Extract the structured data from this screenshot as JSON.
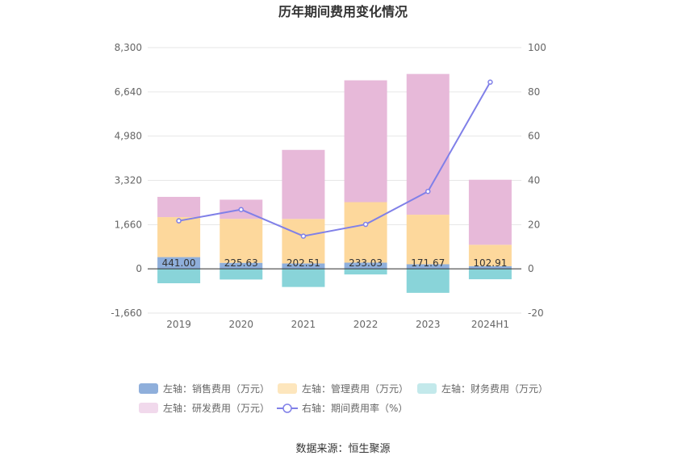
{
  "title": "历年期间费用变化情况",
  "source": "数据来源：恒生聚源",
  "chart_data": {
    "type": "bar",
    "stacked": true,
    "categories": [
      "2019",
      "2020",
      "2021",
      "2022",
      "2023",
      "2024H1"
    ],
    "y_left": {
      "ylim": [
        -1660,
        8300
      ],
      "ticks": [
        "8,300",
        "6,640",
        "4,980",
        "3,320",
        "1,660",
        "0",
        "-1,660"
      ],
      "tick_values": [
        8300,
        6640,
        4980,
        3320,
        1660,
        0,
        -1660
      ]
    },
    "y_right": {
      "ylim": [
        -20,
        100
      ],
      "ticks": [
        "100",
        "80",
        "60",
        "40",
        "20",
        "0",
        "-20"
      ],
      "tick_values": [
        100,
        80,
        60,
        40,
        20,
        0,
        -20
      ]
    },
    "series": [
      {
        "name": "左轴：销售费用（万元）",
        "kind": "bar",
        "color": "#8fafdb",
        "values": [
          441.0,
          225.63,
          202.51,
          233.03,
          171.67,
          102.91
        ],
        "labels": [
          "441.00",
          "225.63",
          "202.51",
          "233.03",
          "171.67",
          "102.91"
        ]
      },
      {
        "name": "左轴：管理费用（万元）",
        "kind": "bar",
        "color": "#fdd89c",
        "values": [
          1500,
          1650,
          1670,
          2270,
          1860,
          800
        ]
      },
      {
        "name": "左轴：财务费用（万元）",
        "kind": "bar",
        "color": "#89d4d9",
        "values": [
          -540,
          -400,
          -680,
          -210,
          -900,
          -390
        ]
      },
      {
        "name": "左轴：研发费用（万元）",
        "kind": "bar",
        "color": "#e7b9d9",
        "values": [
          760,
          720,
          2590,
          4570,
          5280,
          2440
        ]
      },
      {
        "name": "右轴：期间费用率（%）",
        "kind": "line",
        "axis": "right",
        "color": "#8080e8",
        "values": [
          21.7,
          26.8,
          14.8,
          20.1,
          35.0,
          84.4
        ]
      }
    ],
    "legend_position": "bottom",
    "grid": true
  },
  "legend": [
    {
      "label": "左轴：销售费用（万元）",
      "color": "#8fafdb",
      "shape": "bar"
    },
    {
      "label": "左轴：管理费用（万元）",
      "color": "#fde6bd",
      "shape": "bar"
    },
    {
      "label": "左轴：财务费用（万元）",
      "color": "#c3e9eb",
      "shape": "bar"
    },
    {
      "label": "左轴：研发费用（万元）",
      "color": "#f1d9ec",
      "shape": "bar"
    },
    {
      "label": "右轴：期间费用率（%）",
      "color": "#8080e8",
      "shape": "line"
    }
  ]
}
